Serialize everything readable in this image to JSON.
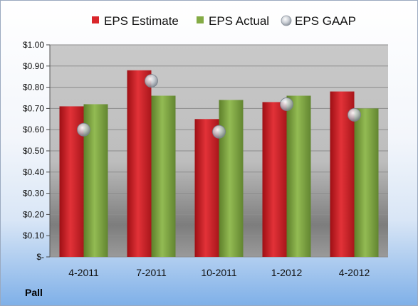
{
  "company": "Pall",
  "colors": {
    "estimate": "#d9262b",
    "actual": "#84ab45",
    "gaap": "#b8bfc9"
  },
  "chart_data": {
    "type": "bar",
    "categories": [
      "4-2011",
      "7-2011",
      "10-2011",
      "1-2012",
      "4-2012"
    ],
    "series": [
      {
        "name": "EPS Estimate",
        "type": "bar",
        "values": [
          0.71,
          0.88,
          0.65,
          0.73,
          0.78
        ]
      },
      {
        "name": "EPS Actual",
        "type": "bar",
        "values": [
          0.72,
          0.76,
          0.74,
          0.76,
          0.7
        ]
      },
      {
        "name": "EPS GAAP",
        "type": "scatter",
        "values": [
          0.6,
          0.83,
          0.59,
          0.72,
          0.67
        ]
      }
    ],
    "y_ticks": [
      "$-",
      "$0.10",
      "$0.20",
      "$0.30",
      "$0.40",
      "$0.50",
      "$0.60",
      "$0.70",
      "$0.80",
      "$0.90",
      "$1.00"
    ],
    "ylim": [
      0,
      1.0
    ],
    "grid": true,
    "legend_position": "top"
  }
}
